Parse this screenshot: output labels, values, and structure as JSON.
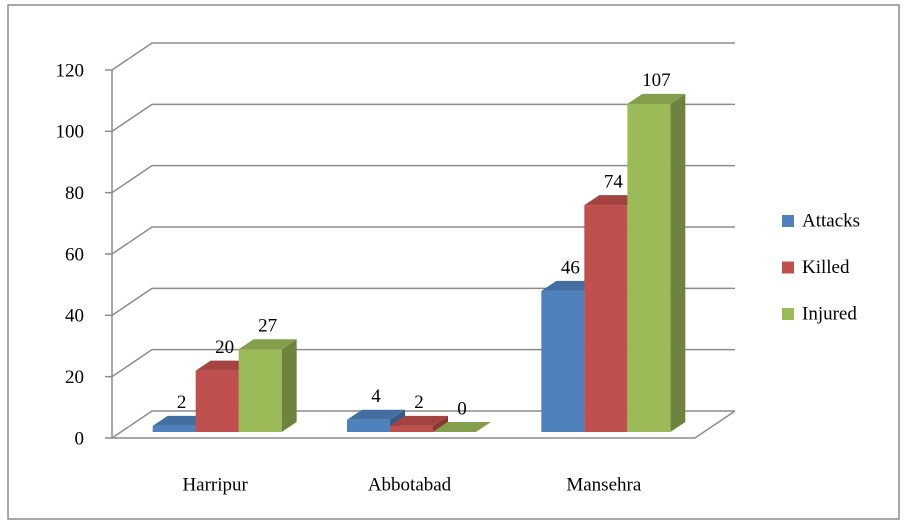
{
  "chart_data": {
    "type": "bar3d",
    "categories": [
      "Harripur",
      "Abbotabad",
      "Mansehra"
    ],
    "series": [
      {
        "name": "Attacks",
        "color": "#4f81bd",
        "values": [
          2,
          4,
          46
        ]
      },
      {
        "name": "Killed",
        "color": "#c0504d",
        "values": [
          20,
          2,
          74
        ]
      },
      {
        "name": "Injured",
        "color": "#9bbb59",
        "values": [
          27,
          0,
          107
        ]
      }
    ],
    "ylim": [
      0,
      120
    ],
    "yticks": [
      0,
      20,
      40,
      60,
      80,
      100,
      120
    ],
    "grid": true,
    "legend": "right"
  }
}
